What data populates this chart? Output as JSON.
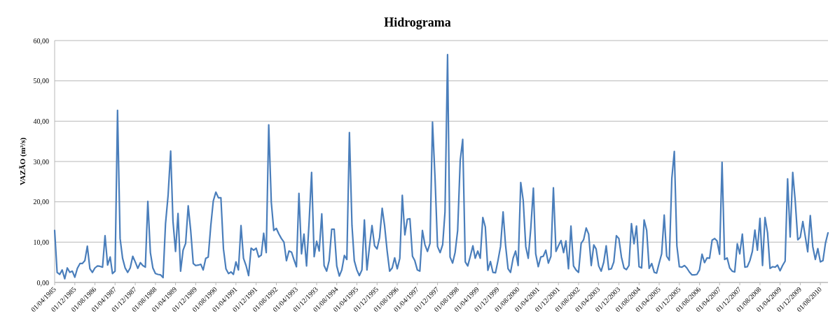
{
  "chart_data": {
    "type": "line",
    "title": "Hidrograma",
    "ylabel": "VAZÃO (m³/s)",
    "x": [
      "1985-04",
      "1985-05",
      "1985-06",
      "1985-07",
      "1985-08",
      "1985-09",
      "1985-10",
      "1985-11",
      "1985-12",
      "1986-01",
      "1986-02",
      "1986-03",
      "1986-04",
      "1986-05",
      "1986-06",
      "1986-07",
      "1986-08",
      "1986-09",
      "1986-10",
      "1986-11",
      "1986-12",
      "1987-01",
      "1987-02",
      "1987-03",
      "1987-04",
      "1987-05",
      "1987-06",
      "1987-07",
      "1987-08",
      "1987-09",
      "1987-10",
      "1987-11",
      "1987-12",
      "1988-01",
      "1988-02",
      "1988-03",
      "1988-04",
      "1988-05",
      "1988-06",
      "1988-07",
      "1988-08",
      "1988-09",
      "1988-10",
      "1988-11",
      "1988-12",
      "1989-01",
      "1989-02",
      "1989-03",
      "1989-04",
      "1989-05",
      "1989-06",
      "1989-07",
      "1989-08",
      "1989-09",
      "1989-10",
      "1989-11",
      "1989-12",
      "1990-01",
      "1990-02",
      "1990-03",
      "1990-04",
      "1990-05",
      "1990-06",
      "1990-07",
      "1990-08",
      "1990-09",
      "1990-10",
      "1990-11",
      "1990-12",
      "1991-01",
      "1991-02",
      "1991-03",
      "1991-04",
      "1991-05",
      "1991-06",
      "1991-07",
      "1991-08",
      "1991-09",
      "1991-10",
      "1991-11",
      "1991-12",
      "1992-01",
      "1992-02",
      "1992-03",
      "1992-04",
      "1992-05",
      "1992-06",
      "1992-07",
      "1992-08",
      "1992-09",
      "1992-10",
      "1992-11",
      "1992-12",
      "1993-01",
      "1993-02",
      "1993-03",
      "1993-04",
      "1993-05",
      "1993-06",
      "1993-07",
      "1993-08",
      "1993-09",
      "1993-10",
      "1993-11",
      "1993-12",
      "1994-01",
      "1994-02",
      "1994-03",
      "1994-04",
      "1994-05",
      "1994-06",
      "1994-07",
      "1994-08",
      "1994-09",
      "1994-10",
      "1994-11",
      "1994-12",
      "1995-01",
      "1995-02",
      "1995-03",
      "1995-04",
      "1995-05",
      "1995-06",
      "1995-07",
      "1995-08",
      "1995-09",
      "1995-10",
      "1995-11",
      "1995-12",
      "1996-01",
      "1996-02",
      "1996-03",
      "1996-04",
      "1996-05",
      "1996-06",
      "1996-07",
      "1996-08",
      "1996-09",
      "1996-10",
      "1996-11",
      "1996-12",
      "1997-01",
      "1997-02",
      "1997-03",
      "1997-04",
      "1997-05",
      "1997-06",
      "1997-07",
      "1997-08",
      "1997-09",
      "1997-10",
      "1997-11",
      "1997-12",
      "1998-01",
      "1998-02",
      "1998-03",
      "1998-04",
      "1998-05",
      "1998-06",
      "1998-07",
      "1998-08",
      "1998-09",
      "1998-10",
      "1998-11",
      "1998-12",
      "1999-01",
      "1999-02",
      "1999-03",
      "1999-04",
      "1999-05",
      "1999-06",
      "1999-07",
      "1999-08",
      "1999-09",
      "1999-10",
      "1999-11",
      "1999-12",
      "2000-01",
      "2000-02",
      "2000-03",
      "2000-04",
      "2000-05",
      "2000-06",
      "2000-07",
      "2000-08",
      "2000-09",
      "2000-10",
      "2000-11",
      "2000-12",
      "2001-01",
      "2001-02",
      "2001-03",
      "2001-04",
      "2001-05",
      "2001-06",
      "2001-07",
      "2001-08",
      "2001-09",
      "2001-10",
      "2001-11",
      "2001-12",
      "2002-01",
      "2002-02",
      "2002-03",
      "2002-04",
      "2002-05",
      "2002-06",
      "2002-07",
      "2002-08",
      "2002-09",
      "2002-10",
      "2002-11",
      "2002-12",
      "2003-01",
      "2003-02",
      "2003-03",
      "2003-04",
      "2003-05",
      "2003-06",
      "2003-07",
      "2003-08",
      "2003-09",
      "2003-10",
      "2003-11",
      "2003-12",
      "2004-01",
      "2004-02",
      "2004-03",
      "2004-04",
      "2004-05",
      "2004-06",
      "2004-07",
      "2004-08",
      "2004-09",
      "2004-10",
      "2004-11",
      "2004-12",
      "2005-01",
      "2005-02",
      "2005-03",
      "2005-04",
      "2005-05",
      "2005-06",
      "2005-07",
      "2005-08",
      "2005-09",
      "2005-10",
      "2005-11",
      "2005-12",
      "2006-01",
      "2006-02",
      "2006-03",
      "2006-04",
      "2006-05",
      "2006-06",
      "2006-07",
      "2006-08",
      "2006-09",
      "2006-10",
      "2006-11",
      "2006-12",
      "2007-01",
      "2007-02",
      "2007-03",
      "2007-04",
      "2007-05",
      "2007-06",
      "2007-07",
      "2007-08",
      "2007-09",
      "2007-10",
      "2007-11",
      "2007-12",
      "2008-01",
      "2008-02",
      "2008-03",
      "2008-04",
      "2008-05",
      "2008-06",
      "2008-07",
      "2008-08",
      "2008-09",
      "2008-10",
      "2008-11",
      "2008-12",
      "2009-01",
      "2009-02",
      "2009-03",
      "2009-04",
      "2009-05",
      "2009-06",
      "2009-07",
      "2009-08",
      "2009-09",
      "2009-10",
      "2009-11",
      "2009-12",
      "2010-01",
      "2010-02",
      "2010-03",
      "2010-04",
      "2010-05",
      "2010-06",
      "2010-07",
      "2010-08",
      "2010-09",
      "2010-10",
      "2010-11"
    ],
    "series": [
      {
        "color": "#4a7ebb",
        "values": [
          12.9,
          2.5,
          2.0,
          3.1,
          0.9,
          3.6,
          2.5,
          2.8,
          1.3,
          3.5,
          4.7,
          4.7,
          5.4,
          9.0,
          3.4,
          2.5,
          3.6,
          4.1,
          4.0,
          3.8,
          11.6,
          4.3,
          6.3,
          2.2,
          2.8,
          42.7,
          10.9,
          6.0,
          3.6,
          2.5,
          3.6,
          6.5,
          5.1,
          3.5,
          4.9,
          4.2,
          3.8,
          20.1,
          7.4,
          3.6,
          2.2,
          2.0,
          1.9,
          1.2,
          14.6,
          21.6,
          32.6,
          15.2,
          7.7,
          17.1,
          2.8,
          8.0,
          9.7,
          19.0,
          12.9,
          4.7,
          4.2,
          4.3,
          4.5,
          3.1,
          6.0,
          6.3,
          14.1,
          20.2,
          22.4,
          21.0,
          21.0,
          8.3,
          3.4,
          2.2,
          2.6,
          2.0,
          5.1,
          3.1,
          14.1,
          6.0,
          4.2,
          1.7,
          8.5,
          8.0,
          8.5,
          6.3,
          6.8,
          12.2,
          7.4,
          39.1,
          19.9,
          12.9,
          13.4,
          12.0,
          10.9,
          10.0,
          5.4,
          7.8,
          7.5,
          5.7,
          3.9,
          22.1,
          7.1,
          12.0,
          4.1,
          15.0,
          27.3,
          6.4,
          10.2,
          7.8,
          17.0,
          4.2,
          2.8,
          5.4,
          13.2,
          13.2,
          4.1,
          1.6,
          3.1,
          6.7,
          5.7,
          37.2,
          14.1,
          5.4,
          3.1,
          1.7,
          3.1,
          15.5,
          3.1,
          9.0,
          14.1,
          9.1,
          8.3,
          11.2,
          18.4,
          14.1,
          7.8,
          2.8,
          3.6,
          6.1,
          3.4,
          6.0,
          21.6,
          11.8,
          15.7,
          15.8,
          6.5,
          5.4,
          3.1,
          2.8,
          12.9,
          9.4,
          7.7,
          9.7,
          39.8,
          25.7,
          8.9,
          7.4,
          9.4,
          17.5,
          56.5,
          6.3,
          4.8,
          7.4,
          12.9,
          30.3,
          35.5,
          5.1,
          4.1,
          6.5,
          9.1,
          6.0,
          7.8,
          6.0,
          16.1,
          13.8,
          3.0,
          5.2,
          2.5,
          2.4,
          5.4,
          8.9,
          17.5,
          9.4,
          3.4,
          2.5,
          6.0,
          7.8,
          4.2,
          24.8,
          20.4,
          8.9,
          6.0,
          13.5,
          23.4,
          7.1,
          3.9,
          6.3,
          6.5,
          8.0,
          4.8,
          6.5,
          23.5,
          7.7,
          9.1,
          10.4,
          7.4,
          10.3,
          3.4,
          14.0,
          4.1,
          3.1,
          2.5,
          9.7,
          10.6,
          13.5,
          12.0,
          4.2,
          9.3,
          8.3,
          4.1,
          2.8,
          5.0,
          9.1,
          3.2,
          3.4,
          5.1,
          11.6,
          10.9,
          6.3,
          3.6,
          3.2,
          4.2,
          14.6,
          9.6,
          14.0,
          3.9,
          3.6,
          15.5,
          12.9,
          3.5,
          4.7,
          2.5,
          2.3,
          4.8,
          7.1,
          16.7,
          6.5,
          5.5,
          25.8,
          32.5,
          9.1,
          3.9,
          3.8,
          4.2,
          3.6,
          2.6,
          1.9,
          1.9,
          2.0,
          3.1,
          7.0,
          4.9,
          6.1,
          6.0,
          10.5,
          10.9,
          10.3,
          7.0,
          29.8,
          5.7,
          6.1,
          3.6,
          2.8,
          2.6,
          9.6,
          7.1,
          12.0,
          3.8,
          3.9,
          5.4,
          7.7,
          13.0,
          8.0,
          15.9,
          4.2,
          16.1,
          12.3,
          3.5,
          3.9,
          3.8,
          4.3,
          2.9,
          4.2,
          5.3,
          25.7,
          11.3,
          27.3,
          20.2,
          10.6,
          11.2,
          15.1,
          11.2,
          7.6,
          16.6,
          8.9,
          5.7,
          8.4,
          5.1,
          5.4,
          9.7,
          12.3
        ]
      }
    ],
    "xlim": [
      "1985-04",
      "2010-11"
    ],
    "xticks": [
      {
        "value": "1985-04",
        "label": "01/04/1985"
      },
      {
        "value": "1985-12",
        "label": "01/12/1985"
      },
      {
        "value": "1986-08",
        "label": "01/08/1986"
      },
      {
        "value": "1987-04",
        "label": "01/04/1987"
      },
      {
        "value": "1987-12",
        "label": "01/12/1987"
      },
      {
        "value": "1988-08",
        "label": "01/08/1988"
      },
      {
        "value": "1989-04",
        "label": "01/04/1989"
      },
      {
        "value": "1989-12",
        "label": "01/12/1989"
      },
      {
        "value": "1990-08",
        "label": "01/08/1990"
      },
      {
        "value": "1991-04",
        "label": "01/04/1991"
      },
      {
        "value": "1991-12",
        "label": "01/12/1991"
      },
      {
        "value": "1992-08",
        "label": "01/08/1992"
      },
      {
        "value": "1993-04",
        "label": "01/04/1993"
      },
      {
        "value": "1993-12",
        "label": "01/12/1993"
      },
      {
        "value": "1994-08",
        "label": "01/08/1994"
      },
      {
        "value": "1995-04",
        "label": "01/04/1995"
      },
      {
        "value": "1995-12",
        "label": "01/12/1995"
      },
      {
        "value": "1996-08",
        "label": "01/08/1996"
      },
      {
        "value": "1997-04",
        "label": "01/04/1997"
      },
      {
        "value": "1997-12",
        "label": "01/12/1997"
      },
      {
        "value": "1998-08",
        "label": "01/08/1998"
      },
      {
        "value": "1999-04",
        "label": "01/04/1999"
      },
      {
        "value": "1999-12",
        "label": "01/12/1999"
      },
      {
        "value": "2000-08",
        "label": "01/08/2000"
      },
      {
        "value": "2001-04",
        "label": "01/04/2001"
      },
      {
        "value": "2001-12",
        "label": "01/12/2001"
      },
      {
        "value": "2002-08",
        "label": "01/08/2002"
      },
      {
        "value": "2003-04",
        "label": "01/04/2003"
      },
      {
        "value": "2003-12",
        "label": "01/12/2003"
      },
      {
        "value": "2004-08",
        "label": "01/08/2004"
      },
      {
        "value": "2005-04",
        "label": "01/04/2005"
      },
      {
        "value": "2005-12",
        "label": "01/12/2005"
      },
      {
        "value": "2006-08",
        "label": "01/08/2006"
      },
      {
        "value": "2007-04",
        "label": "01/04/2007"
      },
      {
        "value": "2007-12",
        "label": "01/12/2007"
      },
      {
        "value": "2008-08",
        "label": "01/08/2008"
      },
      {
        "value": "2009-04",
        "label": "01/04/2009"
      },
      {
        "value": "2009-12",
        "label": "01/12/2009"
      },
      {
        "value": "2010-08",
        "label": "01/08/2010"
      }
    ],
    "ylim": [
      0,
      60
    ],
    "yticks": [
      {
        "value": 0,
        "label": "0,00"
      },
      {
        "value": 10,
        "label": "10,00"
      },
      {
        "value": 20,
        "label": "20,00"
      },
      {
        "value": 30,
        "label": "30,00"
      },
      {
        "value": 40,
        "label": "40,00"
      },
      {
        "value": 50,
        "label": "50,00"
      },
      {
        "value": 60,
        "label": "60,00"
      }
    ],
    "grid": "y"
  }
}
